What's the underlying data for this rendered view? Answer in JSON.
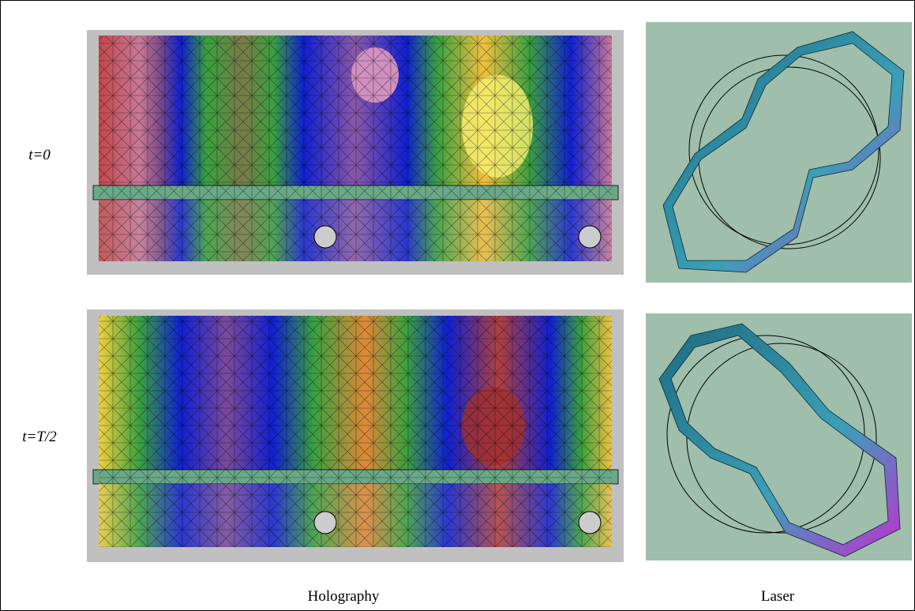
{
  "rows": [
    {
      "label": "t=0"
    },
    {
      "label": "t=T/2"
    }
  ],
  "columns": [
    {
      "label": "Holography"
    },
    {
      "label": "Laser"
    }
  ]
}
